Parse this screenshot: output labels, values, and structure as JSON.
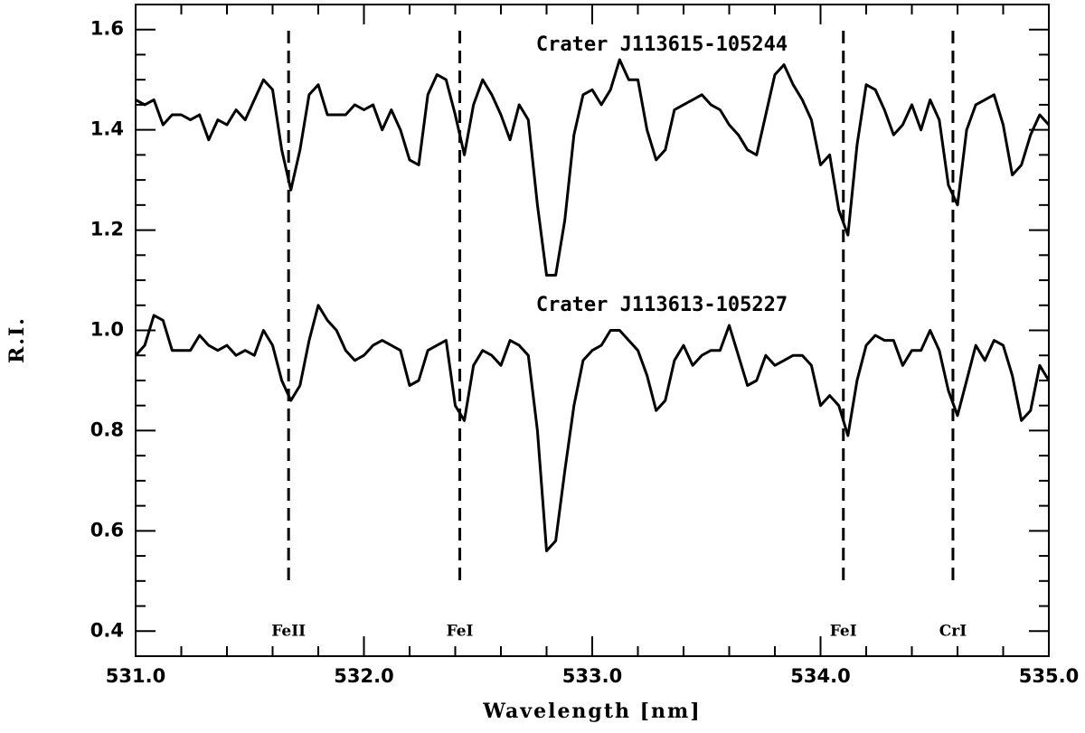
{
  "chart_data": {
    "type": "line",
    "xlabel": "Wavelength [nm]",
    "ylabel": "R.I.",
    "xlim": [
      531.0,
      535.0
    ],
    "ylim": [
      0.35,
      1.65
    ],
    "xticks": [
      {
        "value": 531,
        "label": "531.0"
      },
      {
        "value": 532,
        "label": "532.0"
      },
      {
        "value": 533,
        "label": "533.0"
      },
      {
        "value": 534,
        "label": "534.0"
      },
      {
        "value": 535,
        "label": "535.0"
      }
    ],
    "yticks": [
      0.4,
      0.6,
      0.8,
      {
        "value": 1,
        "label": "1.0"
      },
      1.2,
      1.4,
      1.6
    ],
    "x": [
      531.0,
      531.04,
      531.08,
      531.12,
      531.16,
      531.2,
      531.24,
      531.28,
      531.32,
      531.36,
      531.4,
      531.44,
      531.48,
      531.52,
      531.56,
      531.6,
      531.64,
      531.68,
      531.72,
      531.76,
      531.8,
      531.84,
      531.88,
      531.92,
      531.96,
      532.0,
      532.04,
      532.08,
      532.12,
      532.16,
      532.2,
      532.24,
      532.28,
      532.32,
      532.36,
      532.4,
      532.44,
      532.48,
      532.52,
      532.56,
      532.6,
      532.64,
      532.68,
      532.72,
      532.76,
      532.8,
      532.84,
      532.88,
      532.92,
      532.96,
      533.0,
      533.04,
      533.08,
      533.12,
      533.16,
      533.2,
      533.24,
      533.28,
      533.32,
      533.36,
      533.4,
      533.44,
      533.48,
      533.52,
      533.56,
      533.6,
      533.64,
      533.68,
      533.72,
      533.76,
      533.8,
      533.84,
      533.88,
      533.92,
      533.96,
      534.0,
      534.04,
      534.08,
      534.12,
      534.16,
      534.2,
      534.24,
      534.28,
      534.32,
      534.36,
      534.4,
      534.44,
      534.48,
      534.52,
      534.56,
      534.6,
      534.64,
      534.68,
      534.72,
      534.76,
      534.8,
      534.84,
      534.88,
      534.92,
      534.96,
      535.0
    ],
    "series": [
      {
        "name": "Crater J113615-105244",
        "color": "#000000",
        "values": [
          1.46,
          1.45,
          1.46,
          1.41,
          1.43,
          1.43,
          1.42,
          1.43,
          1.38,
          1.42,
          1.41,
          1.44,
          1.42,
          1.46,
          1.5,
          1.48,
          1.36,
          1.28,
          1.36,
          1.47,
          1.49,
          1.43,
          1.43,
          1.43,
          1.45,
          1.44,
          1.45,
          1.4,
          1.44,
          1.4,
          1.34,
          1.33,
          1.47,
          1.51,
          1.5,
          1.43,
          1.35,
          1.45,
          1.5,
          1.47,
          1.43,
          1.38,
          1.45,
          1.42,
          1.25,
          1.11,
          1.11,
          1.22,
          1.39,
          1.47,
          1.48,
          1.45,
          1.48,
          1.54,
          1.5,
          1.5,
          1.4,
          1.34,
          1.36,
          1.44,
          1.45,
          1.46,
          1.47,
          1.45,
          1.44,
          1.41,
          1.39,
          1.36,
          1.35,
          1.43,
          1.51,
          1.53,
          1.49,
          1.46,
          1.42,
          1.33,
          1.35,
          1.24,
          1.19,
          1.37,
          1.49,
          1.48,
          1.44,
          1.39,
          1.41,
          1.45,
          1.4,
          1.46,
          1.42,
          1.29,
          1.25,
          1.4,
          1.45,
          1.46,
          1.47,
          1.41,
          1.31,
          1.33,
          1.39,
          1.43,
          1.41
        ]
      },
      {
        "name": "Crater J113613-105227",
        "color": "#000000",
        "values": [
          0.95,
          0.97,
          1.03,
          1.02,
          0.96,
          0.96,
          0.96,
          0.99,
          0.97,
          0.96,
          0.97,
          0.95,
          0.96,
          0.95,
          1.0,
          0.97,
          0.9,
          0.86,
          0.89,
          0.98,
          1.05,
          1.02,
          1.0,
          0.96,
          0.94,
          0.95,
          0.97,
          0.98,
          0.97,
          0.96,
          0.89,
          0.9,
          0.96,
          0.97,
          0.98,
          0.85,
          0.82,
          0.93,
          0.96,
          0.95,
          0.93,
          0.98,
          0.97,
          0.95,
          0.8,
          0.56,
          0.58,
          0.72,
          0.85,
          0.94,
          0.96,
          0.97,
          1.0,
          1.0,
          0.98,
          0.96,
          0.91,
          0.84,
          0.86,
          0.94,
          0.97,
          0.93,
          0.95,
          0.96,
          0.96,
          1.01,
          0.95,
          0.89,
          0.9,
          0.95,
          0.93,
          0.94,
          0.95,
          0.95,
          0.93,
          0.85,
          0.87,
          0.85,
          0.79,
          0.9,
          0.97,
          0.99,
          0.98,
          0.98,
          0.93,
          0.96,
          0.96,
          1.0,
          0.96,
          0.88,
          0.83,
          0.9,
          0.97,
          0.94,
          0.98,
          0.97,
          0.91,
          0.82,
          0.84,
          0.93,
          0.9
        ]
      }
    ],
    "lines": [
      {
        "x": 531.67,
        "label": "FeII"
      },
      {
        "x": 532.42,
        "label": "FeI"
      },
      {
        "x": 534.1,
        "label": "FeI"
      },
      {
        "x": 534.58,
        "label": "CrI"
      }
    ]
  }
}
